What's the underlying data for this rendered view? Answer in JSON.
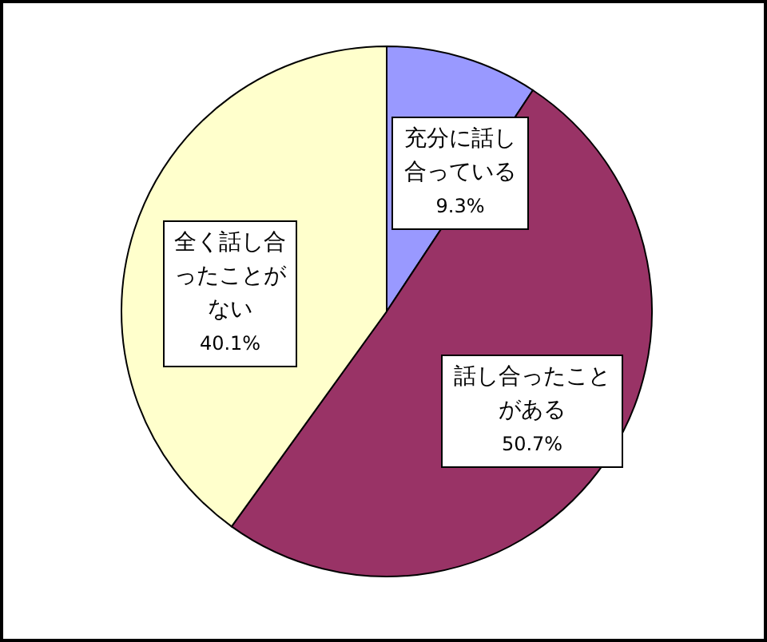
{
  "chart_data": {
    "type": "pie",
    "categories": [
      "充分に話し合っている",
      "話し合ったことがある",
      "全く話し合ったことがない"
    ],
    "values": [
      9.3,
      50.7,
      40.1
    ],
    "colors": [
      "#9999ff",
      "#993366",
      "#ffffcc"
    ],
    "value_labels": [
      "9.3%",
      "50.7%",
      "40.1%"
    ]
  }
}
